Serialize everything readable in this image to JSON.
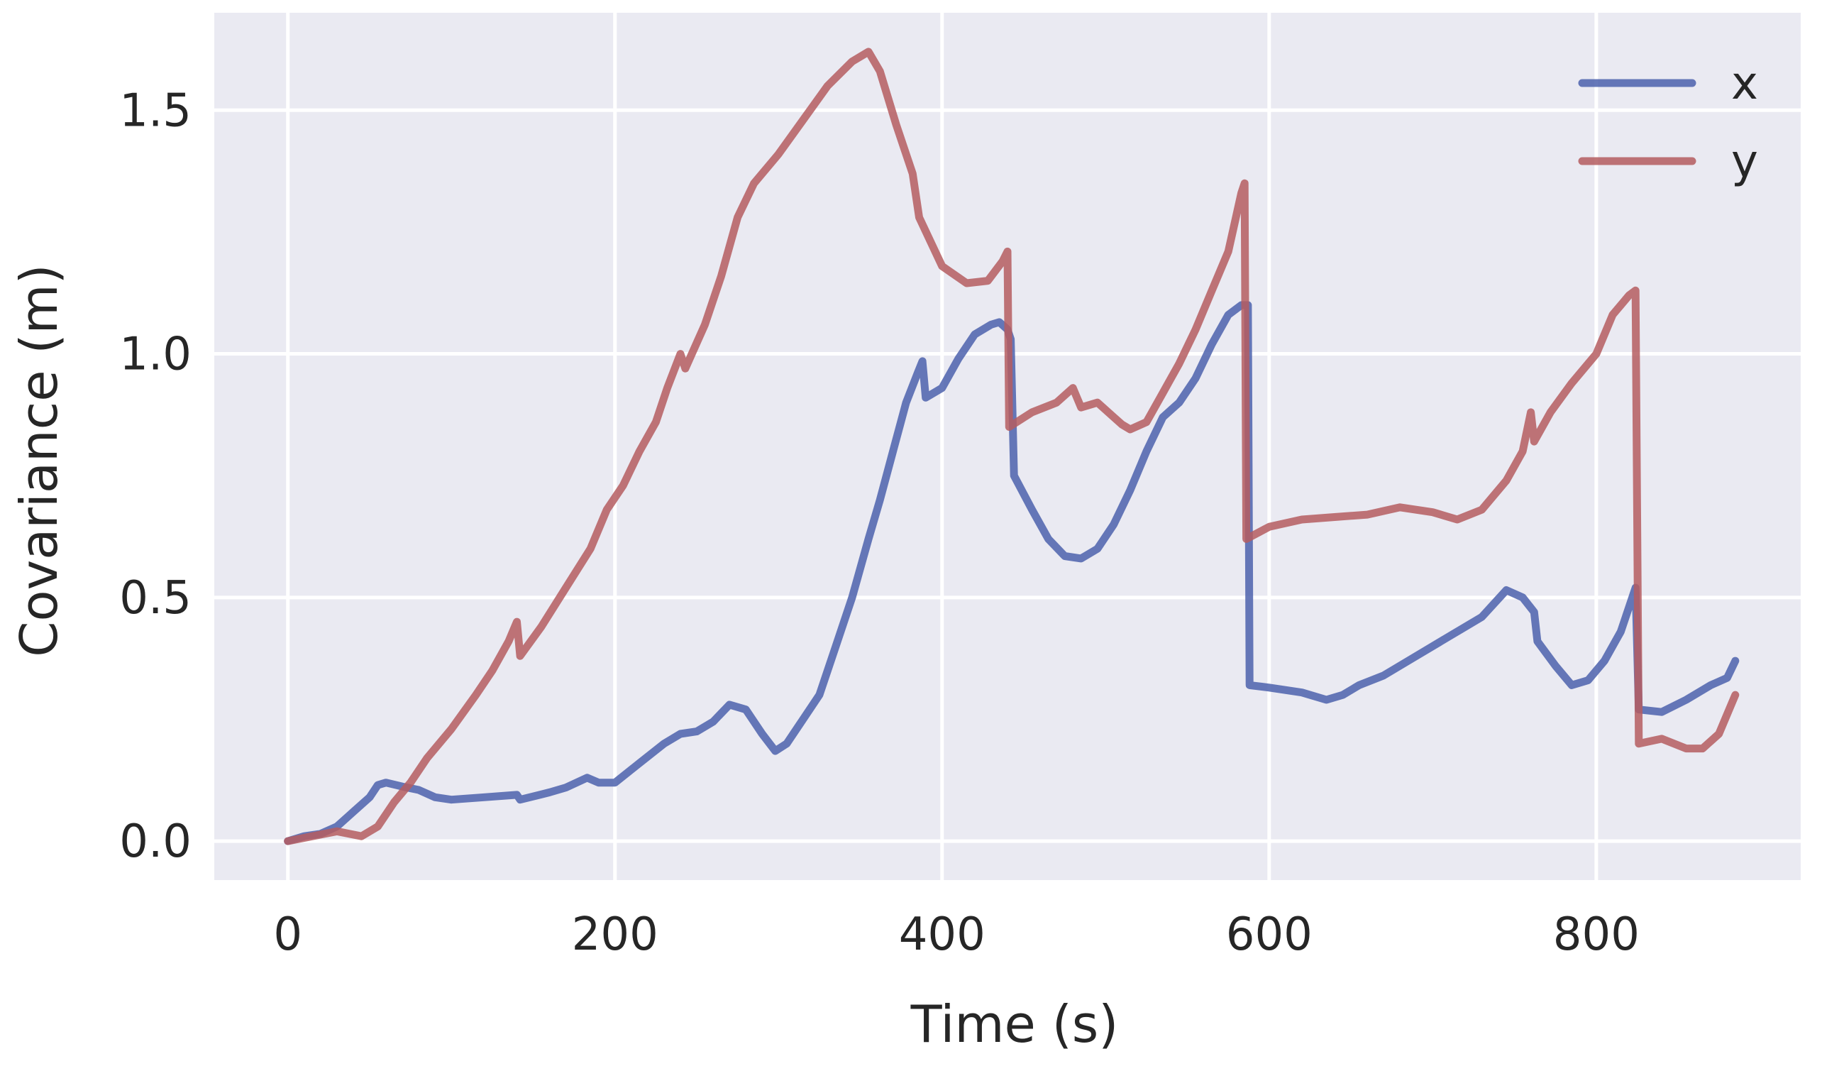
{
  "chart_data": {
    "type": "line",
    "title": "",
    "xlabel": "Time (s)",
    "ylabel": "Covariance (m)",
    "xlim": [
      -45,
      925
    ],
    "ylim": [
      -0.08,
      1.7
    ],
    "xticks": [
      0,
      200,
      400,
      600,
      800
    ],
    "xtick_labels": [
      "0",
      "200",
      "400",
      "600",
      "800"
    ],
    "yticks": [
      0.0,
      0.5,
      1.0,
      1.5
    ],
    "ytick_labels": [
      "0.0",
      "0.5",
      "1.0",
      "1.5"
    ],
    "grid": true,
    "legend_position": "top-right",
    "background_color": "#EAEAF2",
    "series": [
      {
        "name": "x",
        "color": "#4C61AD",
        "points": [
          [
            0,
            0.0
          ],
          [
            10,
            0.01
          ],
          [
            20,
            0.015
          ],
          [
            30,
            0.03
          ],
          [
            40,
            0.06
          ],
          [
            50,
            0.09
          ],
          [
            55,
            0.115
          ],
          [
            60,
            0.12
          ],
          [
            70,
            0.112
          ],
          [
            80,
            0.105
          ],
          [
            90,
            0.09
          ],
          [
            100,
            0.085
          ],
          [
            120,
            0.09
          ],
          [
            140,
            0.095
          ],
          [
            142,
            0.085
          ],
          [
            160,
            0.1
          ],
          [
            170,
            0.11
          ],
          [
            183,
            0.13
          ],
          [
            190,
            0.12
          ],
          [
            200,
            0.12
          ],
          [
            215,
            0.16
          ],
          [
            230,
            0.2
          ],
          [
            240,
            0.22
          ],
          [
            250,
            0.225
          ],
          [
            260,
            0.245
          ],
          [
            270,
            0.28
          ],
          [
            280,
            0.27
          ],
          [
            290,
            0.22
          ],
          [
            298,
            0.185
          ],
          [
            305,
            0.2
          ],
          [
            315,
            0.25
          ],
          [
            325,
            0.3
          ],
          [
            335,
            0.4
          ],
          [
            345,
            0.5
          ],
          [
            355,
            0.62
          ],
          [
            362,
            0.7
          ],
          [
            370,
            0.8
          ],
          [
            378,
            0.9
          ],
          [
            385,
            0.96
          ],
          [
            388,
            0.985
          ],
          [
            390,
            0.91
          ],
          [
            400,
            0.93
          ],
          [
            410,
            0.99
          ],
          [
            420,
            1.04
          ],
          [
            430,
            1.06
          ],
          [
            435,
            1.065
          ],
          [
            440,
            1.05
          ],
          [
            442,
            1.03
          ],
          [
            444,
            0.75
          ],
          [
            455,
            0.68
          ],
          [
            465,
            0.62
          ],
          [
            475,
            0.585
          ],
          [
            485,
            0.58
          ],
          [
            495,
            0.6
          ],
          [
            505,
            0.65
          ],
          [
            515,
            0.72
          ],
          [
            525,
            0.8
          ],
          [
            535,
            0.87
          ],
          [
            545,
            0.9
          ],
          [
            555,
            0.95
          ],
          [
            565,
            1.02
          ],
          [
            575,
            1.08
          ],
          [
            583,
            1.1
          ],
          [
            587,
            1.1
          ],
          [
            588,
            0.32
          ],
          [
            600,
            0.315
          ],
          [
            620,
            0.305
          ],
          [
            635,
            0.29
          ],
          [
            645,
            0.3
          ],
          [
            655,
            0.32
          ],
          [
            670,
            0.34
          ],
          [
            690,
            0.38
          ],
          [
            710,
            0.42
          ],
          [
            730,
            0.46
          ],
          [
            745,
            0.515
          ],
          [
            755,
            0.5
          ],
          [
            762,
            0.47
          ],
          [
            764,
            0.41
          ],
          [
            775,
            0.36
          ],
          [
            785,
            0.32
          ],
          [
            795,
            0.33
          ],
          [
            805,
            0.37
          ],
          [
            815,
            0.43
          ],
          [
            822,
            0.5
          ],
          [
            824,
            0.52
          ],
          [
            826,
            0.27
          ],
          [
            840,
            0.265
          ],
          [
            855,
            0.29
          ],
          [
            870,
            0.32
          ],
          [
            880,
            0.335
          ],
          [
            885,
            0.37
          ]
        ]
      },
      {
        "name": "y",
        "color": "#B55D60",
        "points": [
          [
            0,
            0.0
          ],
          [
            15,
            0.01
          ],
          [
            30,
            0.02
          ],
          [
            45,
            0.01
          ],
          [
            55,
            0.03
          ],
          [
            65,
            0.08
          ],
          [
            75,
            0.12
          ],
          [
            85,
            0.17
          ],
          [
            100,
            0.23
          ],
          [
            115,
            0.3
          ],
          [
            125,
            0.35
          ],
          [
            135,
            0.41
          ],
          [
            140,
            0.45
          ],
          [
            142,
            0.38
          ],
          [
            155,
            0.44
          ],
          [
            170,
            0.52
          ],
          [
            185,
            0.6
          ],
          [
            195,
            0.68
          ],
          [
            205,
            0.73
          ],
          [
            215,
            0.8
          ],
          [
            225,
            0.86
          ],
          [
            232,
            0.93
          ],
          [
            240,
            1.0
          ],
          [
            243,
            0.97
          ],
          [
            255,
            1.06
          ],
          [
            265,
            1.16
          ],
          [
            275,
            1.28
          ],
          [
            285,
            1.35
          ],
          [
            300,
            1.41
          ],
          [
            315,
            1.48
          ],
          [
            330,
            1.55
          ],
          [
            345,
            1.6
          ],
          [
            355,
            1.62
          ],
          [
            362,
            1.58
          ],
          [
            372,
            1.47
          ],
          [
            382,
            1.37
          ],
          [
            386,
            1.28
          ],
          [
            400,
            1.18
          ],
          [
            415,
            1.145
          ],
          [
            428,
            1.15
          ],
          [
            437,
            1.19
          ],
          [
            440,
            1.21
          ],
          [
            441,
            0.85
          ],
          [
            455,
            0.88
          ],
          [
            470,
            0.9
          ],
          [
            480,
            0.93
          ],
          [
            485,
            0.89
          ],
          [
            495,
            0.9
          ],
          [
            505,
            0.87
          ],
          [
            510,
            0.855
          ],
          [
            515,
            0.845
          ],
          [
            525,
            0.86
          ],
          [
            535,
            0.92
          ],
          [
            545,
            0.98
          ],
          [
            555,
            1.05
          ],
          [
            565,
            1.13
          ],
          [
            575,
            1.21
          ],
          [
            583,
            1.33
          ],
          [
            585,
            1.35
          ],
          [
            586,
            0.62
          ],
          [
            600,
            0.645
          ],
          [
            620,
            0.66
          ],
          [
            640,
            0.665
          ],
          [
            660,
            0.67
          ],
          [
            680,
            0.685
          ],
          [
            700,
            0.675
          ],
          [
            715,
            0.66
          ],
          [
            730,
            0.68
          ],
          [
            745,
            0.74
          ],
          [
            755,
            0.8
          ],
          [
            760,
            0.88
          ],
          [
            762,
            0.82
          ],
          [
            772,
            0.88
          ],
          [
            785,
            0.94
          ],
          [
            800,
            1.0
          ],
          [
            810,
            1.08
          ],
          [
            820,
            1.12
          ],
          [
            824,
            1.13
          ],
          [
            826,
            0.2
          ],
          [
            840,
            0.21
          ],
          [
            855,
            0.19
          ],
          [
            865,
            0.19
          ],
          [
            875,
            0.22
          ],
          [
            885,
            0.3
          ]
        ]
      }
    ]
  }
}
